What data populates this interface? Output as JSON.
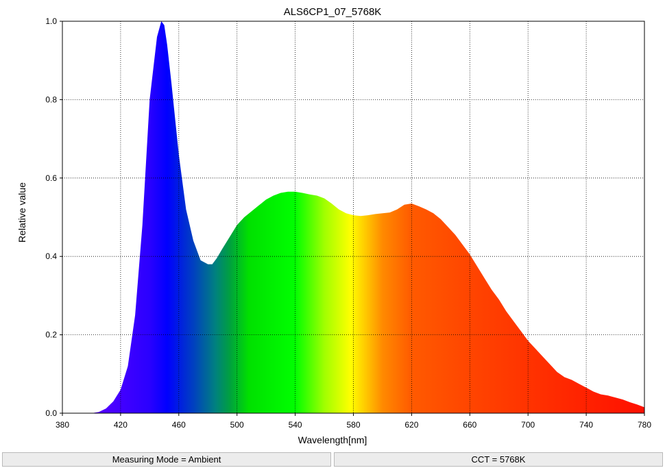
{
  "chart_data": {
    "type": "area",
    "title": "ALS6CP1_07_5768K",
    "xlabel": "Wavelength[nm]",
    "ylabel": "Relative value",
    "xlim": [
      380,
      780
    ],
    "ylim": [
      0,
      1.0
    ],
    "grid": true,
    "fill": "visible-spectrum gradient by wavelength",
    "x_ticks": [
      "380",
      "420",
      "460",
      "500",
      "540",
      "580",
      "620",
      "660",
      "700",
      "740",
      "780"
    ],
    "y_ticks": [
      "0.0",
      "0.2",
      "0.4",
      "0.6",
      "0.8",
      "1.0"
    ],
    "series": [
      {
        "x": [
          400,
          405,
          410,
          415,
          420,
          425,
          430,
          435,
          440,
          445,
          448,
          450,
          452,
          455,
          460,
          465,
          470,
          475,
          480,
          483,
          486,
          490,
          495,
          500,
          505,
          510,
          515,
          520,
          525,
          530,
          535,
          540,
          545,
          550,
          555,
          560,
          565,
          570,
          575,
          580,
          585,
          590,
          595,
          600,
          605,
          610,
          615,
          620,
          625,
          630,
          635,
          640,
          645,
          650,
          655,
          660,
          665,
          670,
          675,
          680,
          685,
          690,
          695,
          700,
          705,
          710,
          715,
          720,
          725,
          730,
          735,
          740,
          745,
          750,
          755,
          760,
          765,
          770,
          775,
          780
        ],
        "y": [
          0.0,
          0.003,
          0.012,
          0.03,
          0.06,
          0.12,
          0.25,
          0.48,
          0.8,
          0.96,
          1.0,
          0.99,
          0.94,
          0.84,
          0.66,
          0.52,
          0.44,
          0.39,
          0.38,
          0.38,
          0.395,
          0.42,
          0.45,
          0.48,
          0.5,
          0.515,
          0.53,
          0.545,
          0.555,
          0.562,
          0.565,
          0.565,
          0.562,
          0.558,
          0.555,
          0.548,
          0.535,
          0.52,
          0.51,
          0.505,
          0.503,
          0.505,
          0.508,
          0.51,
          0.512,
          0.52,
          0.532,
          0.535,
          0.528,
          0.52,
          0.51,
          0.495,
          0.475,
          0.455,
          0.43,
          0.405,
          0.375,
          0.345,
          0.315,
          0.29,
          0.26,
          0.235,
          0.21,
          0.185,
          0.165,
          0.145,
          0.125,
          0.105,
          0.092,
          0.085,
          0.075,
          0.065,
          0.055,
          0.048,
          0.045,
          0.04,
          0.035,
          0.028,
          0.022,
          0.015
        ]
      }
    ]
  },
  "status": {
    "measuring_mode": "Measuring Mode = Ambient",
    "cct": "CCT = 5768K"
  }
}
